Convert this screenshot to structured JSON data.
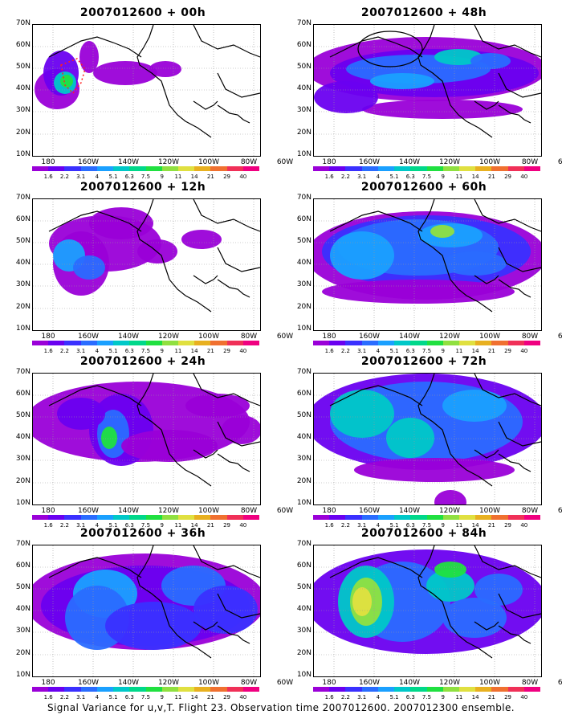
{
  "caption": "Signal Variance for u,v,T. Flight 23. Observation time 2007012600. 2007012300 ensemble.",
  "lat_labels": [
    "70N",
    "60N",
    "50N",
    "40N",
    "30N",
    "20N",
    "10N"
  ],
  "lon_labels": [
    "180",
    "160W",
    "140W",
    "120W",
    "100W",
    "80W",
    "60W"
  ],
  "colorbar": {
    "labels": [
      "1.6",
      "2.2",
      "3.1",
      "4",
      "5.1",
      "6.3",
      "7.5",
      "9",
      "11",
      "14",
      "21",
      "29",
      "40"
    ],
    "colors": [
      "#9a00d8",
      "#6a00f0",
      "#3a30ff",
      "#2a6cff",
      "#1aa0ff",
      "#00c8c8",
      "#00d88a",
      "#20e040",
      "#90e040",
      "#e0e040",
      "#e8b020",
      "#f07030",
      "#f03058",
      "#f00080"
    ]
  },
  "panels": [
    {
      "title": "2007012600 + 00h"
    },
    {
      "title": "2007012600 + 48h"
    },
    {
      "title": "2007012600 + 12h"
    },
    {
      "title": "2007012600 + 60h"
    },
    {
      "title": "2007012600 + 24h"
    },
    {
      "title": "2007012600 + 72h"
    },
    {
      "title": "2007012600 + 36h"
    },
    {
      "title": "2007012600 + 84h"
    }
  ]
}
